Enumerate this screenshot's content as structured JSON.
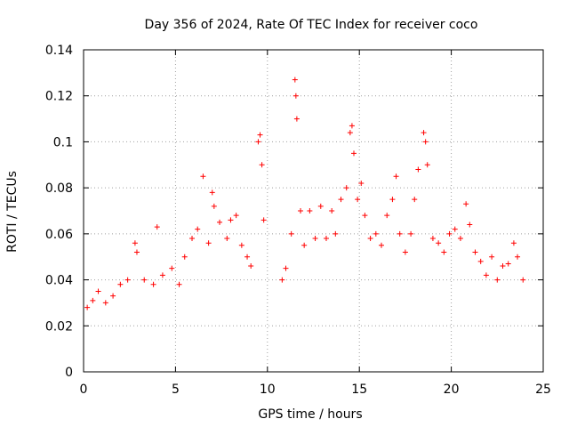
{
  "chart_data": {
    "type": "scatter",
    "title": "Day 356 of 2024, Rate Of TEC Index for receiver coco",
    "xlabel": "GPS time / hours",
    "ylabel": "ROTI / TECUs",
    "xlim": [
      0,
      25
    ],
    "ylim": [
      0,
      0.14
    ],
    "x_ticks": [
      0,
      5,
      10,
      15,
      20,
      25
    ],
    "x_tick_labels": [
      "0",
      "5",
      "10",
      "15",
      "20",
      "25"
    ],
    "y_ticks": [
      0,
      0.02,
      0.04,
      0.06,
      0.08,
      0.1,
      0.12,
      0.14
    ],
    "y_tick_labels": [
      "0",
      "0.02",
      "0.04",
      "0.06",
      "0.08",
      "0.1",
      "0.12",
      "0.14"
    ],
    "grid": true,
    "marker": "plus",
    "marker_color": "#ff0000",
    "series": [
      {
        "name": "ROTI",
        "x": [
          0.2,
          0.5,
          0.8,
          1.2,
          1.6,
          2.0,
          2.4,
          2.8,
          2.9,
          3.3,
          3.8,
          4.0,
          4.3,
          4.8,
          5.2,
          5.5,
          5.9,
          6.2,
          6.5,
          6.8,
          7.0,
          7.1,
          7.4,
          7.8,
          8.0,
          8.3,
          8.6,
          8.9,
          9.1,
          9.5,
          9.6,
          9.7,
          9.8,
          10.8,
          11.0,
          11.3,
          11.5,
          11.55,
          11.6,
          11.8,
          12.0,
          12.3,
          12.6,
          12.9,
          13.2,
          13.5,
          13.7,
          14.0,
          14.3,
          14.5,
          14.6,
          14.7,
          14.9,
          15.1,
          15.3,
          15.6,
          15.9,
          16.2,
          16.5,
          16.8,
          17.0,
          17.2,
          17.5,
          17.8,
          18.0,
          18.2,
          18.5,
          18.6,
          18.7,
          19.0,
          19.3,
          19.6,
          19.9,
          20.2,
          20.5,
          20.8,
          21.0,
          21.3,
          21.6,
          21.9,
          22.2,
          22.5,
          22.8,
          23.1,
          23.4,
          23.6,
          23.9
        ],
        "y": [
          0.028,
          0.031,
          0.035,
          0.03,
          0.033,
          0.038,
          0.04,
          0.056,
          0.052,
          0.04,
          0.038,
          0.063,
          0.042,
          0.045,
          0.038,
          0.05,
          0.058,
          0.062,
          0.085,
          0.056,
          0.078,
          0.072,
          0.065,
          0.058,
          0.066,
          0.068,
          0.055,
          0.05,
          0.046,
          0.1,
          0.103,
          0.09,
          0.066,
          0.04,
          0.045,
          0.06,
          0.127,
          0.12,
          0.11,
          0.07,
          0.055,
          0.07,
          0.058,
          0.072,
          0.058,
          0.07,
          0.06,
          0.075,
          0.08,
          0.104,
          0.107,
          0.095,
          0.075,
          0.082,
          0.068,
          0.058,
          0.06,
          0.055,
          0.068,
          0.075,
          0.085,
          0.06,
          0.052,
          0.06,
          0.075,
          0.088,
          0.104,
          0.1,
          0.09,
          0.058,
          0.056,
          0.052,
          0.06,
          0.062,
          0.058,
          0.073,
          0.064,
          0.052,
          0.048,
          0.042,
          0.05,
          0.04,
          0.046,
          0.047,
          0.056,
          0.05,
          0.04
        ]
      }
    ]
  }
}
